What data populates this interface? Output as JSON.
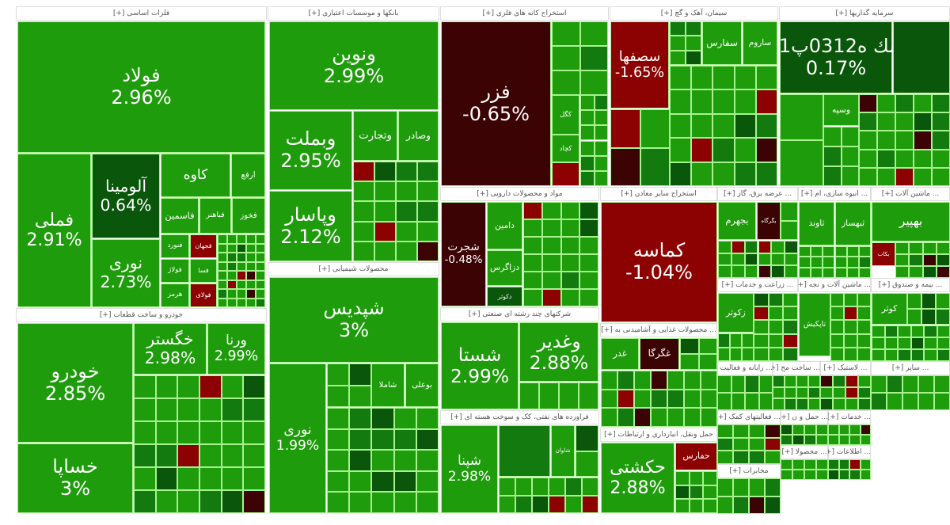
{
  "colors": {
    "G": "#1f9c0c",
    "M": "#137a10",
    "D": "#0a560a",
    "R": "#8c0202",
    "K": "#3b0303",
    "L": "#3dfb2b"
  },
  "sectors": [
    {
      "label": "فلزات اساسی [+]",
      "tiles": [
        {
          "symbol": "فولاد",
          "change": "2.96%",
          "color": "G"
        },
        {
          "symbol": "فملی",
          "change": "2.91%",
          "color": "G"
        },
        {
          "symbol": "آلومینا",
          "change": "0.64%",
          "color": "D"
        },
        {
          "symbol": "نوری",
          "change": "2.73%",
          "color": "G"
        },
        {
          "symbol": "کاوه",
          "change": "",
          "color": "G"
        },
        {
          "symbol": "ارفع",
          "change": "",
          "color": "G"
        },
        {
          "symbol": "فاسمین",
          "change": "",
          "color": "G"
        },
        {
          "symbol": "فباهنر",
          "change": "",
          "color": "G"
        },
        {
          "symbol": "فخوز",
          "change": "",
          "color": "G"
        },
        {
          "symbol": "فنورد",
          "change": "",
          "color": "G"
        },
        {
          "symbol": "فجهان",
          "change": "",
          "color": "R"
        },
        {
          "symbol": "فولاژ",
          "change": "",
          "color": "G"
        },
        {
          "symbol": "فسا",
          "change": "",
          "color": "G"
        },
        {
          "symbol": "هرمز",
          "change": "",
          "color": "G"
        },
        {
          "symbol": "فولای",
          "change": "",
          "color": "R"
        }
      ]
    },
    {
      "label": "خودرو و ساخت قطعات [+]",
      "tiles": [
        {
          "symbol": "خودرو",
          "change": "2.85%",
          "color": "G"
        },
        {
          "symbol": "خساپا",
          "change": "3%",
          "color": "G"
        },
        {
          "symbol": "خگستر",
          "change": "2.98%",
          "color": "G"
        },
        {
          "symbol": "ورنا",
          "change": "2.99%",
          "color": "G"
        }
      ]
    },
    {
      "label": "بانکها و موسسات اعتباری [+]",
      "tiles": [
        {
          "symbol": "ونوین",
          "change": "2.99%",
          "color": "G"
        },
        {
          "symbol": "وبملت",
          "change": "2.95%",
          "color": "G"
        },
        {
          "symbol": "وپاسار",
          "change": "2.12%",
          "color": "G"
        },
        {
          "symbol": "وتجارت",
          "change": "",
          "color": "G"
        },
        {
          "symbol": "وصادر",
          "change": "",
          "color": "G"
        }
      ]
    },
    {
      "label": "محصولات شیمیایی [+]",
      "tiles": [
        {
          "symbol": "شپدیس",
          "change": "3%",
          "color": "G"
        },
        {
          "symbol": "نوری",
          "change": "1.99%",
          "color": "G"
        },
        {
          "symbol": "شاملا",
          "change": "",
          "color": "G"
        },
        {
          "symbol": "بوعلی",
          "change": "",
          "color": "G"
        }
      ]
    },
    {
      "label": "استخراج کانه های فلزی [+]",
      "tiles": [
        {
          "symbol": "فزر",
          "change": "-0.65%",
          "color": "K"
        },
        {
          "symbol": "کگل",
          "change": "",
          "color": "G"
        },
        {
          "symbol": "کچاد",
          "change": "",
          "color": "G"
        }
      ]
    },
    {
      "label": "سیمان، آهک و گچ [+]",
      "tiles": [
        {
          "symbol": "سصفها",
          "change": "-1.65%",
          "color": "R"
        },
        {
          "symbol": "سفارس",
          "change": "",
          "color": "G"
        },
        {
          "symbol": "ساروم",
          "change": "",
          "color": "G"
        }
      ]
    },
    {
      "label": "سرمایه گذاریها [+]",
      "tiles": [
        {
          "symbol": "سك ه0312پ01",
          "change": "0.17%",
          "color": "D"
        },
        {
          "symbol": "وسپه",
          "change": "",
          "color": "G"
        }
      ]
    },
    {
      "label": "مواد و محصولات دارویی [+]",
      "tiles": [
        {
          "symbol": "شجرت",
          "change": "-0.48%",
          "color": "K"
        },
        {
          "symbol": "دامین",
          "change": "",
          "color": "G"
        },
        {
          "symbol": "دزاگرس",
          "change": "",
          "color": "G"
        },
        {
          "symbol": "دکوثر",
          "change": "",
          "color": "D"
        }
      ]
    },
    {
      "label": "استخراج سایر معادن [+]",
      "tiles": [
        {
          "symbol": "کماسه",
          "change": "-1.04%",
          "color": "R"
        }
      ]
    },
    {
      "label": "شرکتهای چند رشته ای صنعتی [+]",
      "tiles": [
        {
          "symbol": "شستا",
          "change": "2.99%",
          "color": "G"
        },
        {
          "symbol": "وغدیر",
          "change": "2.88%",
          "color": "G"
        }
      ]
    },
    {
      "label": "فراورده های نفتی، کک و سوخت هسته ای [+]",
      "tiles": [
        {
          "symbol": "شپنا",
          "change": "2.98%",
          "color": "G"
        },
        {
          "symbol": "شاوان",
          "change": "",
          "color": "G"
        }
      ]
    },
    {
      "label": "... محصولات غذایی و آشامیدنی به [+]",
      "tiles": [
        {
          "symbol": "غگرگا",
          "change": "",
          "color": "K"
        },
        {
          "symbol": "غدر",
          "change": "",
          "color": "G"
        }
      ]
    },
    {
      "label": "حمل ونقل، انبارداری و ارتباطات [+]",
      "tiles": [
        {
          "symbol": "حکشتی",
          "change": "2.88%",
          "color": "G"
        },
        {
          "symbol": "حفارس",
          "change": "",
          "color": "R"
        }
      ]
    },
    {
      "label": "... عرضه برق، گاز [+]",
      "tiles": [
        {
          "symbol": "بجهرم",
          "change": "",
          "color": "G"
        },
        {
          "symbol": "بگرگاه",
          "change": "",
          "color": "K"
        }
      ]
    },
    {
      "label": "... انبوه سازی، ام [+]",
      "tiles": [
        {
          "symbol": "ثاوند",
          "change": "",
          "color": "G"
        },
        {
          "symbol": "ثبهساز",
          "change": "",
          "color": "G"
        }
      ]
    },
    {
      "label": "... ماشین آلات [+]",
      "tiles": [
        {
          "symbol": "بهپیر",
          "change": "",
          "color": "G"
        },
        {
          "symbol": "بکاب",
          "change": "",
          "color": "R"
        }
      ]
    },
    {
      "label": "... زراعت و خدمات [+]",
      "tiles": [
        {
          "symbol": "زکوثر",
          "change": "",
          "color": "G"
        }
      ]
    },
    {
      "label": "... ماشین آلات و تجه [+]",
      "tiles": [
        {
          "symbol": "تاپکیش",
          "change": "",
          "color": "G"
        }
      ]
    },
    {
      "label": "... بیمه و صندوق [+]",
      "tiles": [
        {
          "symbol": "کوثر",
          "change": "",
          "color": "G"
        }
      ]
    },
    {
      "label": "... رایانه و فعالیت [+]",
      "tiles": []
    },
    {
      "label": "... ساخت مح [+]",
      "tiles": []
    },
    {
      "label": "... لاستیک [+]",
      "tiles": []
    },
    {
      "label": "... سایر [+]",
      "tiles": []
    },
    {
      "label": "... فعالیتهای کمک [+]",
      "tiles": []
    },
    {
      "label": "... حمل و ن [+]",
      "tiles": []
    },
    {
      "label": "... خدمات [+]",
      "tiles": []
    },
    {
      "label": "... محصولا [+]",
      "tiles": []
    },
    {
      "label": "... اطلاعات [+]",
      "tiles": []
    },
    {
      "label": "مخابرات [+]",
      "tiles": []
    }
  ]
}
